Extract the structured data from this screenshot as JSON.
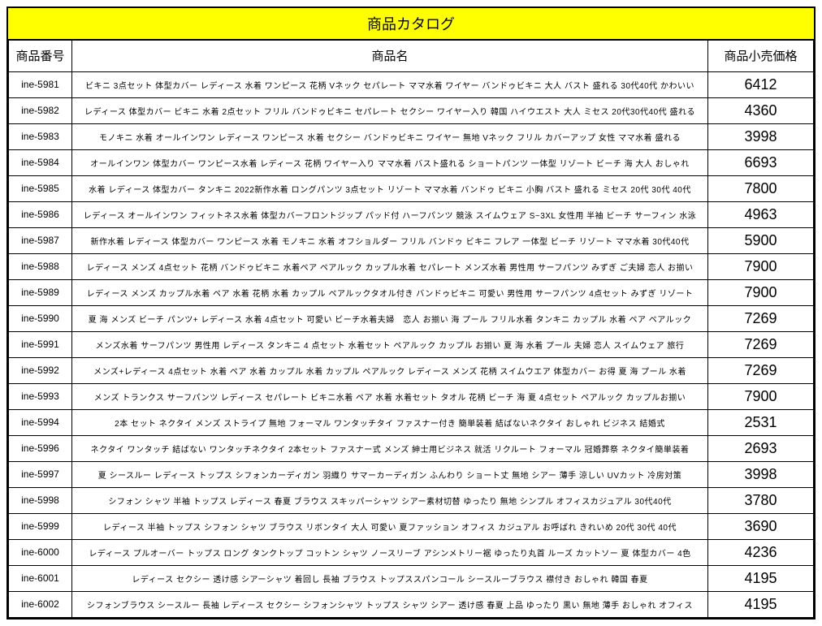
{
  "title": "商品カタログ",
  "headers": {
    "code": "商品番号",
    "name": "商品名",
    "price": "商品小売価格"
  },
  "rows": [
    {
      "code": "ine-5981",
      "name": "ビキニ 3点セット 体型カバー レディース 水着 ワンピース 花柄 Vネック セパレート ママ水着 ワイヤー バンドゥビキニ 大人 バスト 盛れる 30代40代 かわいい",
      "price": "6412"
    },
    {
      "code": "ine-5982",
      "name": "レディース 体型カバー ビキニ 水着 2点セット フリル バンドゥビキニ セパレート セクシー ワイヤー入り 韓国 ハイウエスト 大人 ミセス 20代30代40代 盛れる",
      "price": "4360"
    },
    {
      "code": "ine-5983",
      "name": "モノキニ 水着 オールインワン レディース ワンピース 水着 セクシー バンドゥビキニ ワイヤー 無地 Vネック フリル カバーアップ 女性 ママ水着 盛れる",
      "price": "3998"
    },
    {
      "code": "ine-5984",
      "name": "オールインワン 体型カバー ワンピース水着 レディース 花柄 ワイヤー入り ママ水着 バスト盛れる ショートパンツ 一体型 リゾート ビーチ 海 大人 おしゃれ",
      "price": "6693"
    },
    {
      "code": "ine-5985",
      "name": "水着 レディース 体型カバー タンキニ 2022新作水着 ロングパンツ 3点セット リゾート ママ水着 バンドゥ ビキニ 小胸 バスト 盛れる ミセス 20代 30代 40代",
      "price": "7800"
    },
    {
      "code": "ine-5986",
      "name": "レディース オールインワン フィットネス水着 体型カバーフロントジップ パッド付 ハーフパンツ 競泳 スイムウェア S~3XL 女性用 半袖 ビーチ サーフィン 水泳",
      "price": "4963"
    },
    {
      "code": "ine-5987",
      "name": "新作水着 レディース 体型カバー ワンピース 水着 モノキニ 水着 オフショルダー フリル バンドゥ ビキニ フレア 一体型 ビーチ リゾート ママ水着 30代40代",
      "price": "5900"
    },
    {
      "code": "ine-5988",
      "name": "レディース メンズ 4点セット 花柄 バンドゥビキニ 水着ペア ペアルック カップル水着 セパレート メンズ水着 男性用 サーフパンツ みずぎ ご夫婦 恋人 お揃い",
      "price": "7900"
    },
    {
      "code": "ine-5989",
      "name": "レディース メンズ カップル水着 ペア 水着 花柄 水着 カップル ペアルックタオル付き バンドゥビキニ 可愛い 男性用 サーフパンツ 4点セット みずぎ リゾート",
      "price": "7900"
    },
    {
      "code": "ine-5990",
      "name": "夏 海 メンズ ビーチ パンツ+ レディース 水着 4点セット 可愛い ビーチ水着夫婦　恋人 お揃い 海 プール フリル水着 タンキニ カップル 水着 ペア ペアルック",
      "price": "7269"
    },
    {
      "code": "ine-5991",
      "name": "メンズ水着 サーフパンツ 男性用 レディース タンキニ 4 点セット 水着セット ペアルック カップル お揃い 夏 海 水着 プール 夫婦 恋人 スイムウェア 旅行",
      "price": "7269"
    },
    {
      "code": "ine-5992",
      "name": "メンズ+レディース 4点セット 水着 ペア 水着 カップル 水着 カップル ペアルック レディース メンズ 花柄 スイムウエア 体型カバー お得 夏 海 プール 水着",
      "price": "7269"
    },
    {
      "code": "ine-5993",
      "name": "メンズ トランクス サーフパンツ レディース セパレート ビキニ水着 ペア 水着 水着セット タオル 花柄 ビーチ 海 夏 4点セット ペアルック カップルお揃い",
      "price": "7900"
    },
    {
      "code": "ine-5994",
      "name": "2本 セット ネクタイ メンズ ストライプ 無地 フォーマル ワンタッチタイ ファスナー付き 簡単装着 結ばないネクタイ おしゃれ ビジネス 結婚式",
      "price": "2531"
    },
    {
      "code": "ine-5996",
      "name": "ネクタイ ワンタッチ 結ばない ワンタッチネクタイ 2本セット ファスナー式 メンズ 紳士用ビジネス 就活 リクルート フォーマル 冠婚葬祭 ネクタイ簡単装着",
      "price": "2693"
    },
    {
      "code": "ine-5997",
      "name": "夏 シースルー レディース トップス シフォンカーディガン 羽織り サマーカーディガン ふんわり ショート丈 無地 シアー 薄手 涼しい UVカット 冷房対策",
      "price": "3998"
    },
    {
      "code": "ine-5998",
      "name": "シフォン シャツ 半袖 トップス レディース 春夏 ブラウス スキッパーシャツ シアー素材切替 ゆったり 無地 シンプル オフィスカジュアル 30代40代",
      "price": "3780"
    },
    {
      "code": "ine-5999",
      "name": "レディース 半袖 トップス シフォン シャツ ブラウス リボンタイ 大人 可愛い 夏ファッション オフィス カジュアル お呼ばれ きれいめ 20代 30代 40代",
      "price": "3690"
    },
    {
      "code": "ine-6000",
      "name": "レディース プルオーバー トップス ロング タンクトップ コットン シャツ ノースリーブ アシンメトリー裾 ゆったり丸首 ルーズ カットソー 夏 体型カバー 4色",
      "price": "4236"
    },
    {
      "code": "ine-6001",
      "name": "レディース セクシー 透け感 シアーシャツ 着回し 長袖 ブラウス トップススパンコール シースルーブラウス 襟付き おしゃれ 韓国 春夏",
      "price": "4195"
    },
    {
      "code": "ine-6002",
      "name": "シフォンブラウス シースルー 長袖 レディース セクシー シフォンシャツ トップス シャツ シアー 透け感 春夏 上品 ゆったり 黒い 無地 薄手 おしゃれ オフィス",
      "price": "4195"
    }
  ]
}
